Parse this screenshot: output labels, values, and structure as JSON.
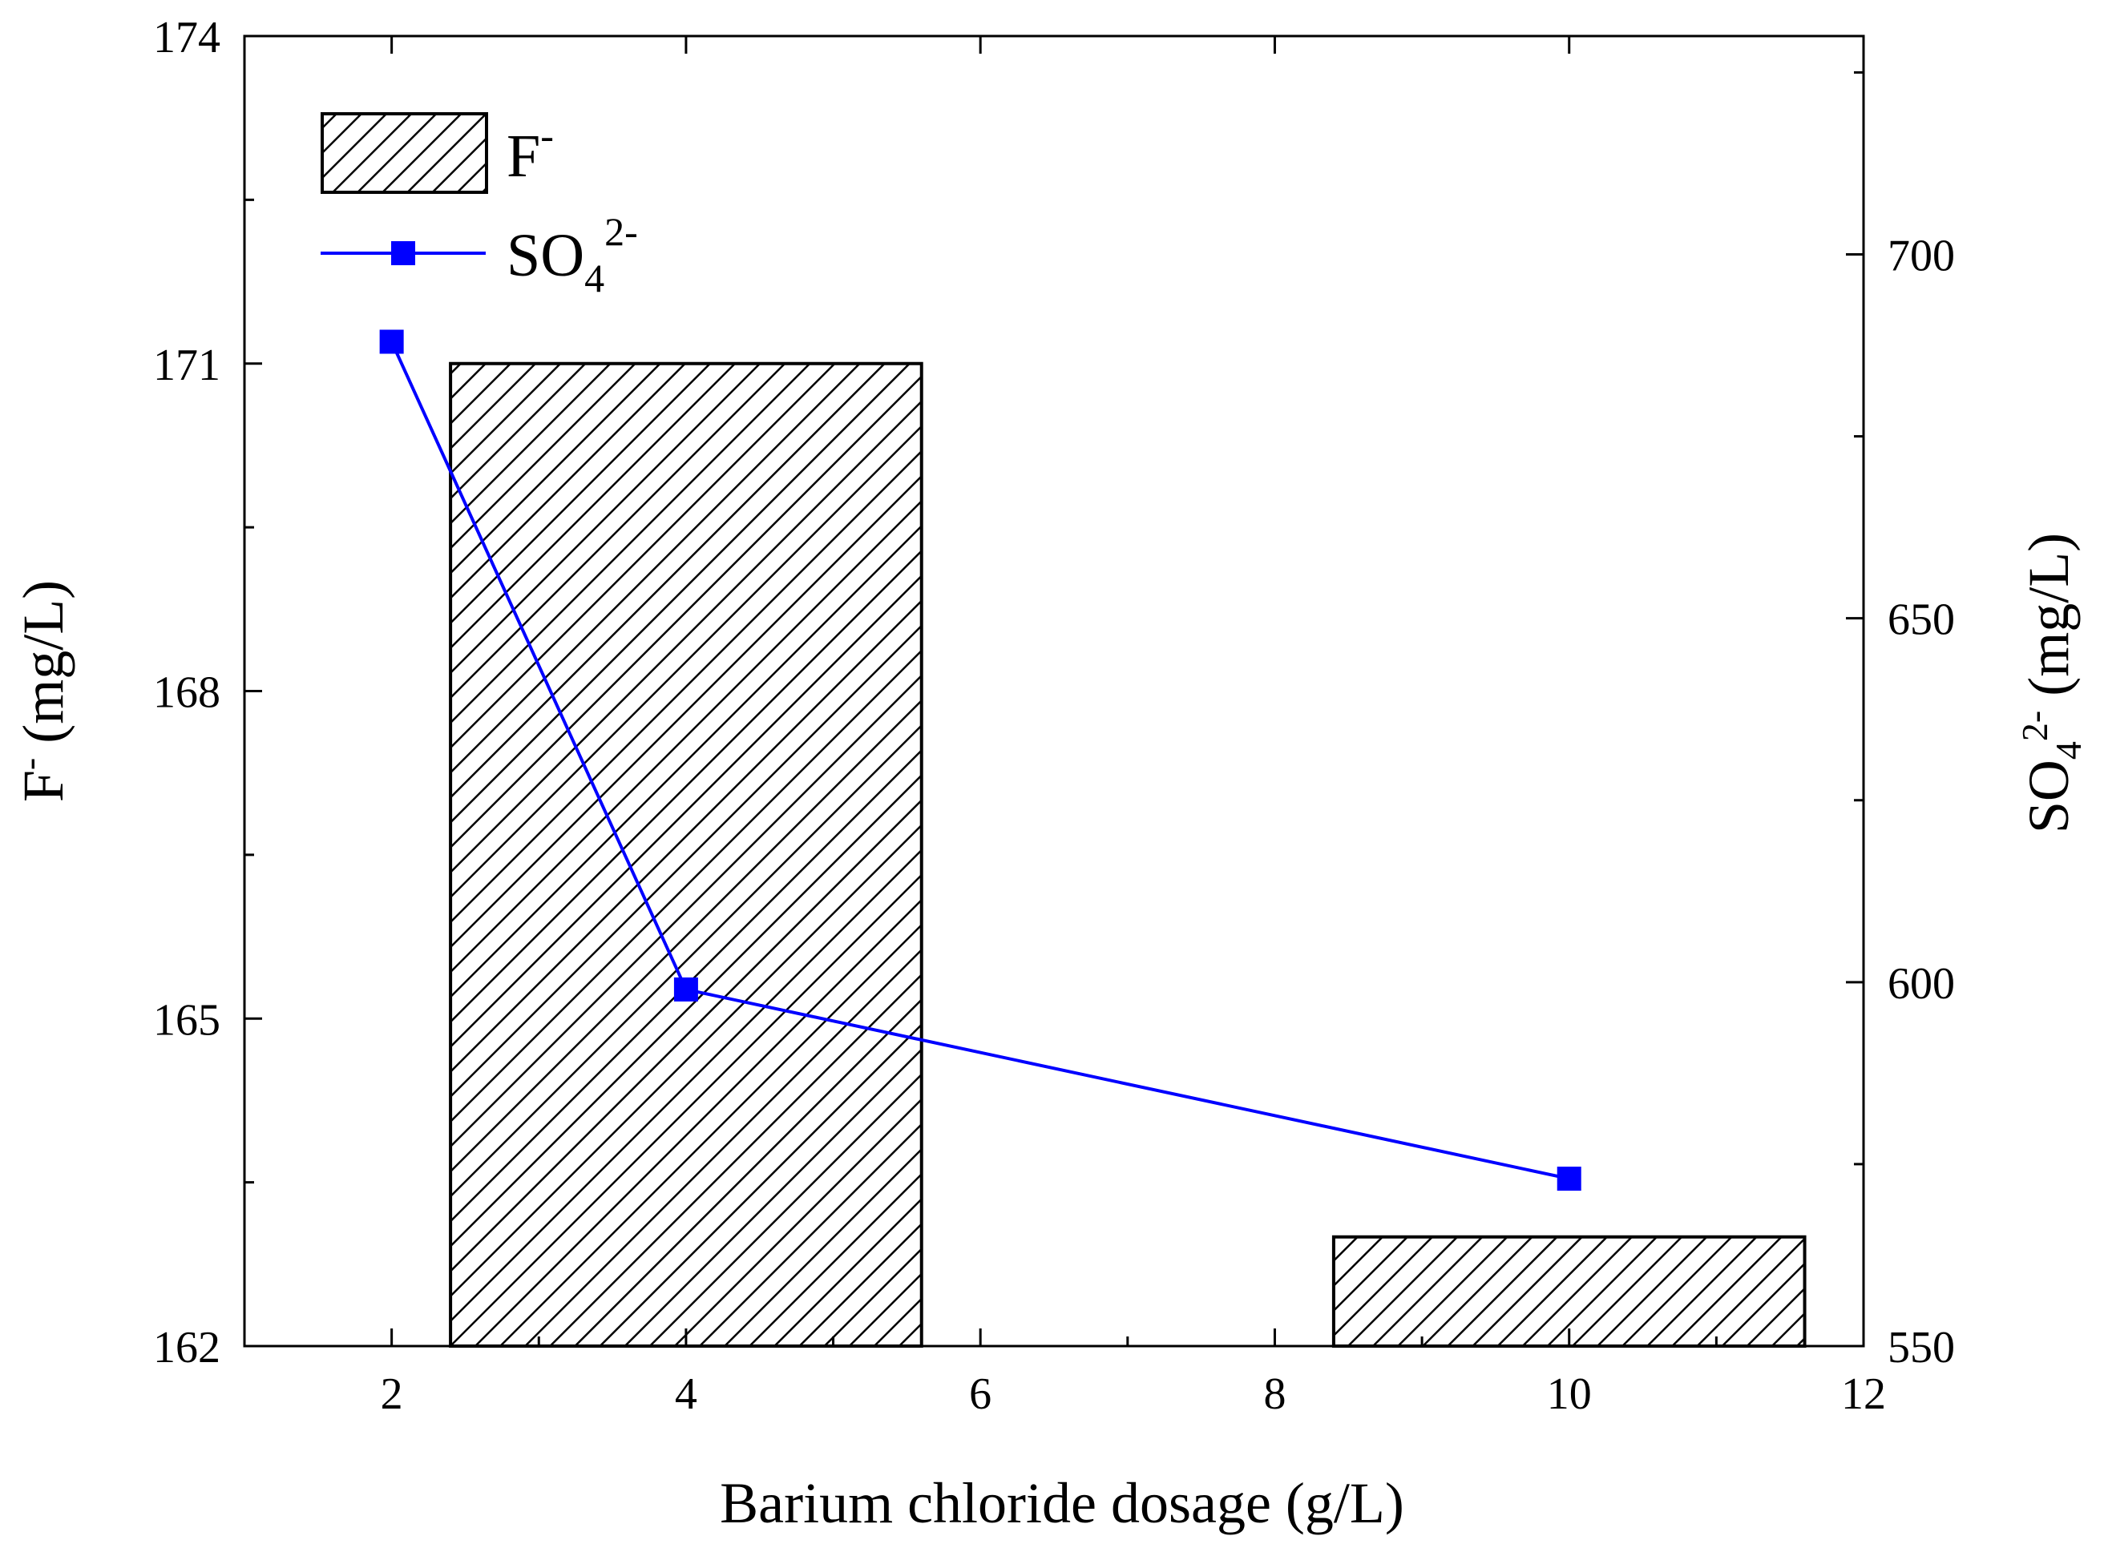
{
  "chart_data": {
    "type": "bar+line",
    "xlabel": "Barium chloride dosage (g/L)",
    "ylabel_left": {
      "main": "F",
      "sup": "-",
      "unit": " (mg/L)"
    },
    "ylabel_right": {
      "main": "SO",
      "sub": "4",
      "sup": "2-",
      "unit": " (mg/L)"
    },
    "xlim": [
      1,
      12
    ],
    "ylim_left": [
      162,
      174
    ],
    "ylim_right": [
      550,
      730
    ],
    "x_ticks": [
      2,
      4,
      6,
      8,
      10,
      12
    ],
    "y_left_ticks": [
      162,
      165,
      168,
      171,
      174
    ],
    "y_right_ticks": [
      550,
      600,
      650,
      700
    ],
    "legend": {
      "position": "top-left",
      "entries": [
        {
          "kind": "bar",
          "main": "F",
          "sup": "-"
        },
        {
          "kind": "line",
          "main": "SO",
          "sub": "4",
          "sup": "2-"
        }
      ]
    },
    "series": [
      {
        "name": "F-",
        "kind": "bar",
        "axis": "left",
        "fill": "hatched",
        "bars": [
          {
            "x_from": 2.4,
            "x_to": 5.6,
            "value": 171
          },
          {
            "x_from": 8.4,
            "x_to": 11.6,
            "value": 163
          }
        ]
      },
      {
        "name": "SO4 2-",
        "kind": "line",
        "axis": "right",
        "color": "#0000ff",
        "marker": "square",
        "points": [
          {
            "x": 2,
            "y": 688
          },
          {
            "x": 4,
            "y": 599
          },
          {
            "x": 10,
            "y": 573
          }
        ]
      }
    ]
  }
}
